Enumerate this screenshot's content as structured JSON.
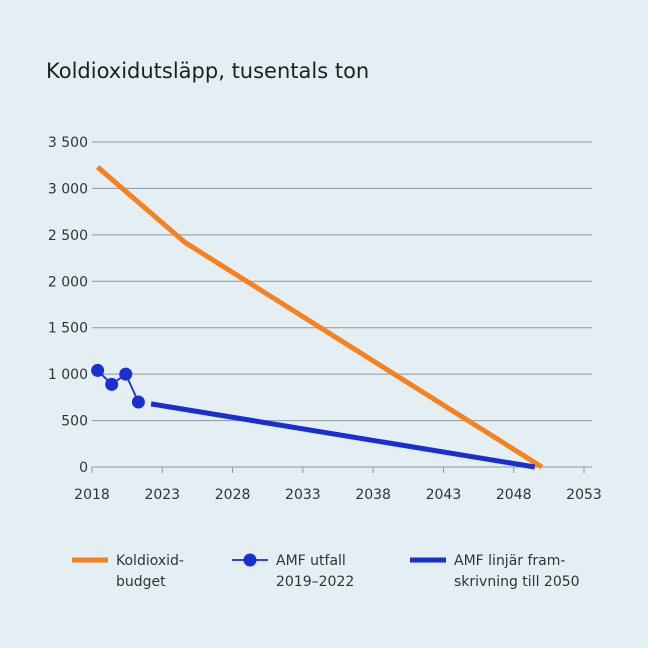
{
  "chart_data": {
    "type": "line",
    "title": "Koldioxidutsläpp, tusentals ton",
    "xlabel": "",
    "ylabel": "",
    "xlim": [
      2018,
      2053
    ],
    "ylim": [
      0,
      3500
    ],
    "x_ticks": [
      2018,
      2023,
      2028,
      2033,
      2038,
      2043,
      2048,
      2053
    ],
    "x_tick_labels": [
      "2018",
      "2023",
      "2028",
      "2033",
      "2038",
      "2043",
      "2048",
      "2053"
    ],
    "y_ticks": [
      0,
      500,
      1000,
      1500,
      2000,
      2500,
      3000,
      3500
    ],
    "y_tick_labels": [
      "0",
      "500",
      "1 000",
      "1 500",
      "2 000",
      "2 500",
      "3 000",
      "3 500"
    ],
    "grid": true,
    "legend_position": "bottom",
    "series": [
      {
        "name": "Koldioxid-budget",
        "legend_lines": [
          "Koldioxid-",
          "budget"
        ],
        "color": "#f7811f",
        "style": "line",
        "x": [
          2018.4,
          2024.6,
          2050
        ],
        "y": [
          3230,
          2420,
          0
        ]
      },
      {
        "name": "AMF utfall 2019–2022",
        "legend_lines": [
          "AMF utfall",
          "2019–2022"
        ],
        "color": "#1a2fd0",
        "style": "line-markers",
        "x": [
          2018.4,
          2019.4,
          2020.4,
          2021.3
        ],
        "y": [
          1040,
          890,
          1000,
          700
        ]
      },
      {
        "name": "AMF linjär fram-skrivning till 2050",
        "legend_lines": [
          "AMF linjär fram-",
          "skrivning till 2050"
        ],
        "color": "#1a2fd0",
        "style": "thick-line",
        "x": [
          2022.2,
          2049.5
        ],
        "y": [
          680,
          0
        ]
      }
    ]
  }
}
